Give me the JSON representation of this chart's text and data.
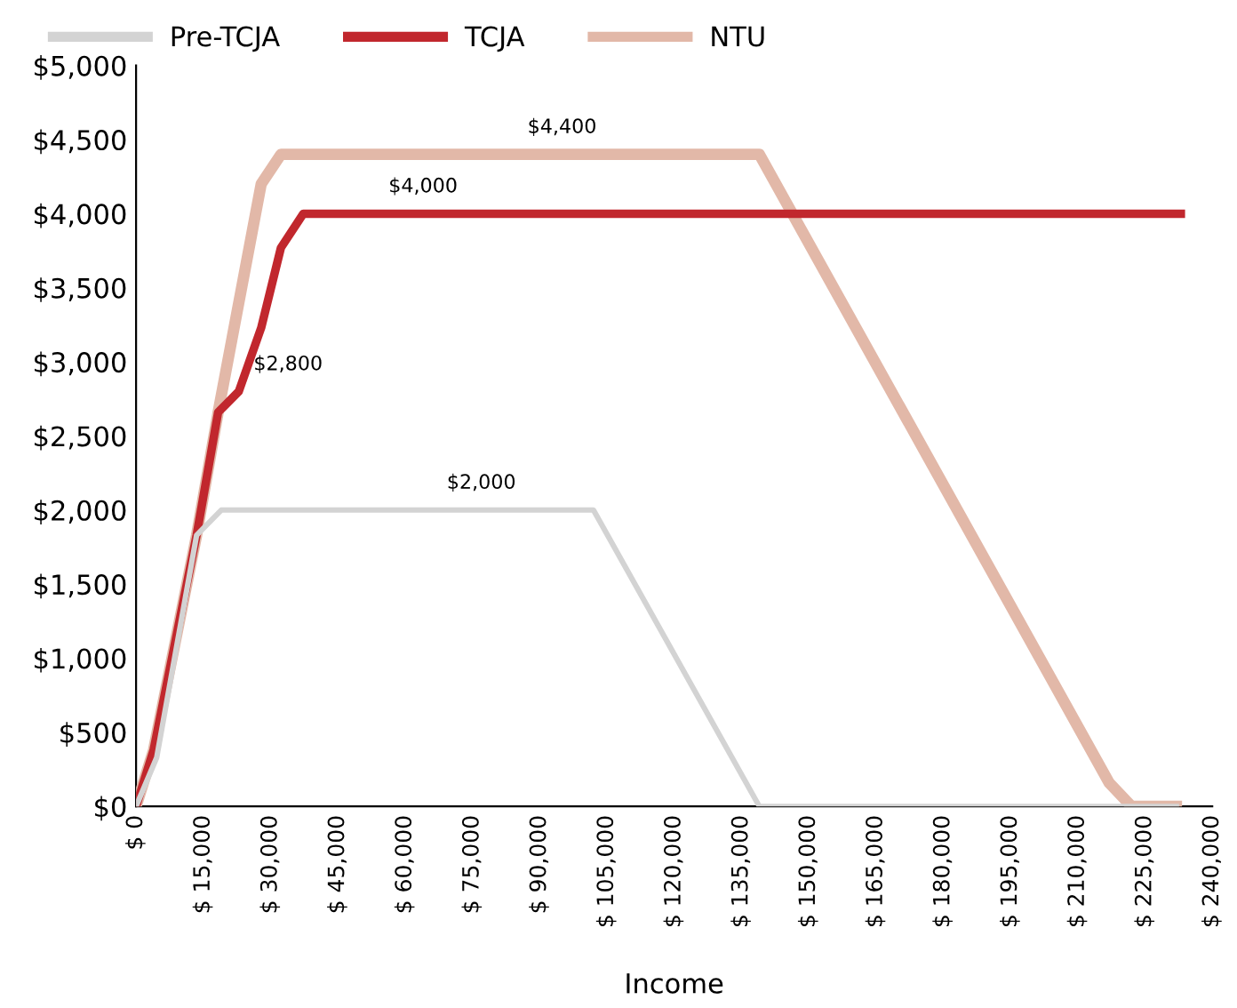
{
  "chart_data": {
    "type": "line",
    "xlabel": "Income",
    "legend": "top left",
    "grid": false,
    "line_style": "solid",
    "marker": "none",
    "xlim": [
      0,
      240000
    ],
    "ylim": [
      0,
      5000
    ],
    "xticks": [
      {
        "value": 0,
        "label": "$ 0"
      },
      {
        "value": 15000,
        "label": "$ 15,000"
      },
      {
        "value": 30000,
        "label": "$ 30,000"
      },
      {
        "value": 45000,
        "label": "$ 45,000"
      },
      {
        "value": 60000,
        "label": "$ 60,000"
      },
      {
        "value": 75000,
        "label": "$ 75,000"
      },
      {
        "value": 90000,
        "label": "$ 90,000"
      },
      {
        "value": 105000,
        "label": "$ 105,000"
      },
      {
        "value": 120000,
        "label": "$ 120,000"
      },
      {
        "value": 135000,
        "label": "$ 135,000"
      },
      {
        "value": 150000,
        "label": "$ 150,000"
      },
      {
        "value": 165000,
        "label": "$ 165,000"
      },
      {
        "value": 180000,
        "label": "$ 180,000"
      },
      {
        "value": 195000,
        "label": "$ 195,000"
      },
      {
        "value": 210000,
        "label": "$ 210,000"
      },
      {
        "value": 225000,
        "label": "$ 225,000"
      },
      {
        "value": 240000,
        "label": "$ 240,000"
      }
    ],
    "yticks": [
      {
        "value": 0,
        "label": "$0"
      },
      {
        "value": 500,
        "label": "$500"
      },
      {
        "value": 1000,
        "label": "$1,000"
      },
      {
        "value": 1500,
        "label": "$1,500"
      },
      {
        "value": 2000,
        "label": "$2,000"
      },
      {
        "value": 2500,
        "label": "$2,500"
      },
      {
        "value": 3000,
        "label": "$3,000"
      },
      {
        "value": 3500,
        "label": "$3,500"
      },
      {
        "value": 4000,
        "label": "$4,000"
      },
      {
        "value": 4500,
        "label": "$4,500"
      },
      {
        "value": 5000,
        "label": "$5,000"
      }
    ],
    "series": [
      {
        "name": "Pre-TCJA",
        "color": "#d3d3d3",
        "x": [
          0,
          4600,
          13500,
          19000,
          102000,
          139000,
          232000
        ],
        "values": [
          0,
          330,
          1830,
          2000,
          2000,
          0,
          0
        ]
      },
      {
        "name": "TCJA",
        "color": "#c1272d",
        "x": [
          0,
          3900,
          13500,
          18300,
          22900,
          27900,
          32300,
          37300,
          233000
        ],
        "values": [
          0,
          380,
          1830,
          2660,
          2800,
          3230,
          3770,
          4000,
          4000
        ]
      },
      {
        "name": "NTU",
        "color": "#e2b8a8",
        "x": [
          0,
          3900,
          13500,
          18300,
          27900,
          32300,
          139000,
          217000,
          222000,
          232000
        ],
        "values": [
          0,
          380,
          1830,
          2660,
          4200,
          4400,
          4400,
          160,
          0,
          0
        ]
      }
    ],
    "annotations": [
      {
        "text": "$4,400",
        "x": 84000,
        "y": 4400
      },
      {
        "text": "$4,000",
        "x": 53000,
        "y": 4000
      },
      {
        "text": "$2,800",
        "x": 22900,
        "y": 2800
      },
      {
        "text": "$2,000",
        "x": 66000,
        "y": 2000
      }
    ]
  }
}
